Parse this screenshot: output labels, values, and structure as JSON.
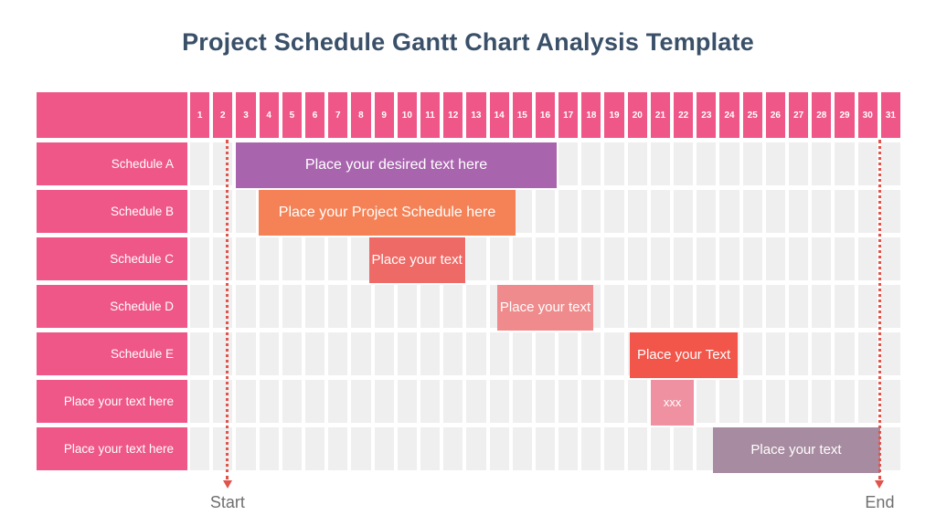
{
  "title": "Project Schedule Gantt Chart Analysis Template",
  "colors": {
    "header_pink": "#ee5788",
    "grid_cell": "#efefef",
    "title_text": "#3a5069",
    "marker_line": "#e0544b",
    "marker_label_text": "#6f6f6f",
    "bar_text": "#ffffff"
  },
  "chart_data": {
    "type": "gantt",
    "title": "Project Schedule Gantt Chart Analysis Template",
    "day_min": 1,
    "day_max": 31,
    "days": [
      1,
      2,
      3,
      4,
      5,
      6,
      7,
      8,
      9,
      10,
      11,
      12,
      13,
      14,
      15,
      16,
      17,
      18,
      19,
      20,
      21,
      22,
      23,
      24,
      25,
      26,
      27,
      28,
      29,
      30,
      31
    ],
    "row_labels": [
      "Schedule A",
      "Schedule B",
      "Schedule C",
      "Schedule D",
      "Schedule E",
      "Place your text here",
      "Place your text here"
    ],
    "bars": [
      {
        "row": 0,
        "label": "Place your desired text here",
        "start_day": 3.0,
        "end_day": 17.0,
        "color": "#a964ae"
      },
      {
        "row": 1,
        "label": "Place your Project Schedule here",
        "start_day": 4.0,
        "end_day": 15.2,
        "color": "#f58256"
      },
      {
        "row": 2,
        "label": "Place your text",
        "start_day": 8.8,
        "end_day": 13.0,
        "color": "#ee6a66"
      },
      {
        "row": 3,
        "label": "Place your text",
        "start_day": 14.4,
        "end_day": 18.6,
        "color": "#ef8b8c"
      },
      {
        "row": 4,
        "label": "Place your Text",
        "start_day": 20.2,
        "end_day": 24.9,
        "color": "#f2564a"
      },
      {
        "row": 5,
        "label": "xxx",
        "start_day": 21.1,
        "end_day": 23.0,
        "color": "#f091a1"
      },
      {
        "row": 6,
        "label": "Place your text",
        "start_day": 23.8,
        "end_day": 31.1,
        "color": "#a78ba0"
      }
    ],
    "markers": [
      {
        "label": "Start",
        "day": 2.63
      },
      {
        "label": "End",
        "day": 31.1
      }
    ]
  }
}
